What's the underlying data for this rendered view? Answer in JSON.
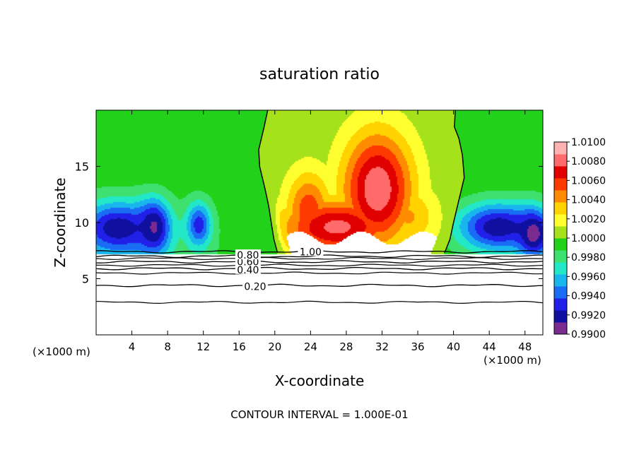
{
  "chart_data": {
    "type": "heatmap",
    "title": "saturation ratio",
    "xlabel": "X-coordinate",
    "ylabel": "Z-coordinate",
    "x_unit_left": "(×1000 m)",
    "x_unit_right": "(×1000 m)",
    "footer": "CONTOUR INTERVAL = 1.000E-01",
    "xlim": [
      0,
      50
    ],
    "ylim": [
      0,
      20
    ],
    "x_ticks": [
      4,
      8,
      12,
      16,
      20,
      24,
      28,
      32,
      36,
      40,
      44,
      48
    ],
    "y_ticks": [
      5,
      10,
      15
    ],
    "x_tick_labels": [
      "4",
      "8",
      "12",
      "16",
      "20",
      "24",
      "28",
      "32",
      "36",
      "40",
      "44",
      "48"
    ],
    "y_tick_labels": [
      "5",
      "10",
      "15"
    ],
    "colorbar": {
      "min": 0.99,
      "max": 1.01,
      "labels": [
        "1.0100",
        "1.0080",
        "1.0060",
        "1.0040",
        "1.0020",
        "1.0000",
        "0.9980",
        "0.9960",
        "0.9940",
        "0.9920",
        "0.9900"
      ],
      "colors": [
        "#7b2a8f",
        "#1010a0",
        "#2020e8",
        "#1a6cf5",
        "#19b6ee",
        "#22e8c8",
        "#3ee070",
        "#22d11a",
        "#a6e21c",
        "#ffff30",
        "#ffd200",
        "#ff8c00",
        "#ff3a00",
        "#e00000",
        "#ff6a6a",
        "#ffb2b2"
      ]
    },
    "contour_lines": [
      {
        "level": 0.2,
        "label": "0.20",
        "z": 4.4
      },
      {
        "level": 0.4,
        "label": "0.40",
        "z": 5.9
      },
      {
        "level": 0.6,
        "label": "0.60",
        "z": 6.5
      },
      {
        "level": 0.8,
        "label": "0.80",
        "z": 7.0
      },
      {
        "level": 1.0,
        "label": "1.00",
        "z": 7.4
      }
    ],
    "extra_contours_z": [
      2.9,
      5.5,
      6.2,
      6.8
    ],
    "cloud_base_z": 7.2,
    "fields": {
      "cold_blobs": [
        {
          "x": 2.5,
          "z": 9.5,
          "sx": 3.0,
          "sz": 1.6,
          "v": 0.9915
        },
        {
          "x": 6.5,
          "z": 9.6,
          "sx": 1.2,
          "sz": 1.6,
          "v": 0.991
        },
        {
          "x": 11.5,
          "z": 9.8,
          "sx": 1.0,
          "sz": 1.4,
          "v": 0.993
        },
        {
          "x": 45.0,
          "z": 9.6,
          "sx": 3.2,
          "sz": 1.5,
          "v": 0.9915
        },
        {
          "x": 49.0,
          "z": 9.0,
          "sx": 1.2,
          "sz": 1.4,
          "v": 0.9905
        }
      ],
      "warm_blobs": [
        {
          "x": 31.5,
          "z": 13.0,
          "sx": 2.8,
          "sz": 3.6,
          "v": 1.0082
        },
        {
          "x": 27.0,
          "z": 9.6,
          "sx": 4.5,
          "sz": 1.8,
          "v": 1.0075
        },
        {
          "x": 23.8,
          "z": 11.0,
          "sx": 1.8,
          "sz": 2.5,
          "v": 1.0055
        },
        {
          "x": 35.0,
          "z": 10.5,
          "sx": 2.2,
          "sz": 2.0,
          "v": 1.0035
        }
      ],
      "zero_line_left": [
        [
          19.2,
          20
        ],
        [
          18.8,
          18.5
        ],
        [
          18.2,
          16.5
        ],
        [
          18.3,
          15.0
        ],
        [
          18.9,
          13.0
        ],
        [
          19.3,
          11.5
        ],
        [
          19.6,
          10.0
        ],
        [
          19.9,
          8.5
        ],
        [
          20.3,
          7.3
        ]
      ],
      "zero_line_right": [
        [
          40.2,
          20
        ],
        [
          40.1,
          18.5
        ],
        [
          40.6,
          17.5
        ],
        [
          41.0,
          16.0
        ],
        [
          41.2,
          14.0
        ],
        [
          40.6,
          12.0
        ],
        [
          40.0,
          10.0
        ],
        [
          39.6,
          8.5
        ],
        [
          39.0,
          7.3
        ]
      ]
    }
  }
}
